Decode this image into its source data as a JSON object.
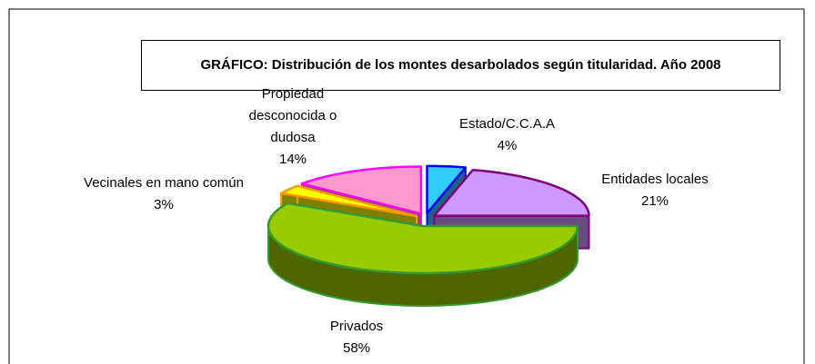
{
  "chart_data": {
    "type": "pie3d",
    "title": "GRÁFICO: Distribución de los montes desarbolados según titularidad. Año 2008",
    "categories": [
      "Estado/C.C.A.A",
      "Entidades locales",
      "Privados",
      "Vecinales en mano común",
      "Propiedad desconocida o dudosa"
    ],
    "values": [
      4,
      21,
      58,
      3,
      14
    ],
    "value_labels": [
      "4%",
      "21%",
      "58%",
      "3%",
      "14%"
    ],
    "colors": [
      "#33ccff",
      "#cc99ff",
      "#99cc00",
      "#ffff00",
      "#ff99cc"
    ],
    "border_colors": [
      "#0000ff",
      "#800080",
      "#339933",
      "#ff9900",
      "#ff00ff"
    ]
  }
}
